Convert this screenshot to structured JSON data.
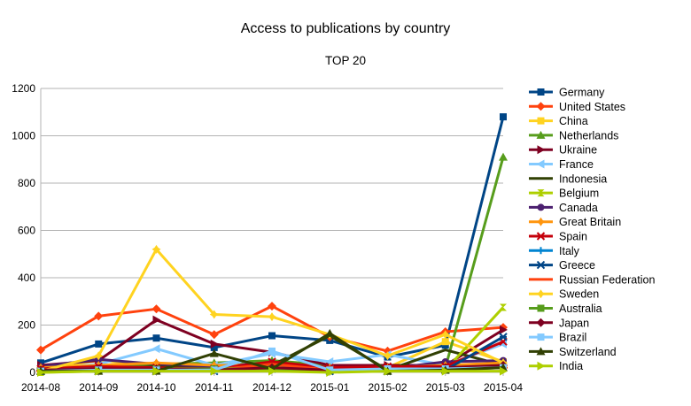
{
  "chart_data": {
    "type": "line",
    "title": "Access to publications by country",
    "subtitle": "TOP 20",
    "xlabel": "",
    "ylabel": "",
    "ylim": [
      0,
      1200
    ],
    "yticks": [
      0,
      200,
      400,
      600,
      800,
      1000,
      1200
    ],
    "grid": true,
    "legend": "right",
    "categories": [
      "2014-08",
      "2014-09",
      "2014-10",
      "2014-11",
      "2014-12",
      "2015-01",
      "2015-02",
      "2015-03",
      "2015-04"
    ],
    "series": [
      {
        "name": "Germany",
        "color": "#004586",
        "marker": "square",
        "values": [
          40,
          120,
          145,
          105,
          155,
          135,
          65,
          115,
          1080
        ]
      },
      {
        "name": "United States",
        "color": "#ff420e",
        "marker": "diamond",
        "values": [
          95,
          238,
          268,
          160,
          280,
          150,
          90,
          172,
          190
        ]
      },
      {
        "name": "China",
        "color": "#ffd320",
        "marker": "square",
        "values": [
          15,
          50,
          30,
          10,
          40,
          30,
          20,
          130,
          45
        ]
      },
      {
        "name": "Netherlands",
        "color": "#579d1c",
        "marker": "triangle-up",
        "values": [
          5,
          20,
          35,
          40,
          50,
          30,
          15,
          20,
          910
        ]
      },
      {
        "name": "Ukraine",
        "color": "#7e0021",
        "marker": "triangle-right",
        "values": [
          30,
          50,
          222,
          120,
          85,
          30,
          30,
          30,
          180
        ]
      },
      {
        "name": "France",
        "color": "#83caff",
        "marker": "triangle-left",
        "values": [
          10,
          35,
          100,
          30,
          80,
          45,
          75,
          30,
          120
        ]
      },
      {
        "name": "Indonesia",
        "color": "#314004",
        "marker": "bowtie",
        "values": [
          5,
          15,
          25,
          20,
          30,
          155,
          10,
          95,
          30
        ]
      },
      {
        "name": "Belgium",
        "color": "#aecf00",
        "marker": "hourglass",
        "values": [
          0,
          5,
          10,
          10,
          15,
          5,
          5,
          10,
          275
        ]
      },
      {
        "name": "Canada",
        "color": "#4b1f6f",
        "marker": "circle",
        "values": [
          25,
          55,
          35,
          25,
          40,
          20,
          15,
          45,
          50
        ]
      },
      {
        "name": "Great Britain",
        "color": "#ff950e",
        "marker": "star",
        "values": [
          20,
          30,
          40,
          30,
          30,
          20,
          20,
          30,
          40
        ]
      },
      {
        "name": "Spain",
        "color": "#c5000b",
        "marker": "x",
        "values": [
          15,
          25,
          20,
          15,
          45,
          20,
          25,
          25,
          130
        ]
      },
      {
        "name": "Italy",
        "color": "#0084d1",
        "marker": "plus",
        "values": [
          10,
          15,
          15,
          10,
          20,
          10,
          10,
          15,
          30
        ]
      },
      {
        "name": "Greece",
        "color": "#004586",
        "marker": "asterisk",
        "values": [
          5,
          10,
          10,
          5,
          15,
          5,
          5,
          10,
          150
        ]
      },
      {
        "name": "Russian Federation",
        "color": "#ff420e",
        "marker": "hline",
        "values": [
          5,
          10,
          15,
          10,
          35,
          10,
          10,
          15,
          20
        ]
      },
      {
        "name": "Sweden",
        "color": "#ffd320",
        "marker": "star",
        "values": [
          5,
          70,
          520,
          245,
          235,
          160,
          70,
          160,
          40
        ]
      },
      {
        "name": "Australia",
        "color": "#579d1c",
        "marker": "square",
        "values": [
          5,
          10,
          15,
          15,
          15,
          10,
          5,
          10,
          20
        ]
      },
      {
        "name": "Japan",
        "color": "#7e0021",
        "marker": "diamond",
        "values": [
          10,
          15,
          15,
          10,
          20,
          10,
          10,
          20,
          30
        ]
      },
      {
        "name": "Brazil",
        "color": "#83caff",
        "marker": "square",
        "values": [
          5,
          10,
          10,
          10,
          90,
          10,
          15,
          15,
          20
        ]
      },
      {
        "name": "Switzerland",
        "color": "#314004",
        "marker": "triangle-up",
        "values": [
          5,
          5,
          5,
          80,
          15,
          165,
          5,
          10,
          20
        ]
      },
      {
        "name": "India",
        "color": "#aecf00",
        "marker": "triangle-right",
        "values": [
          0,
          5,
          5,
          5,
          5,
          0,
          5,
          5,
          5
        ]
      }
    ]
  }
}
